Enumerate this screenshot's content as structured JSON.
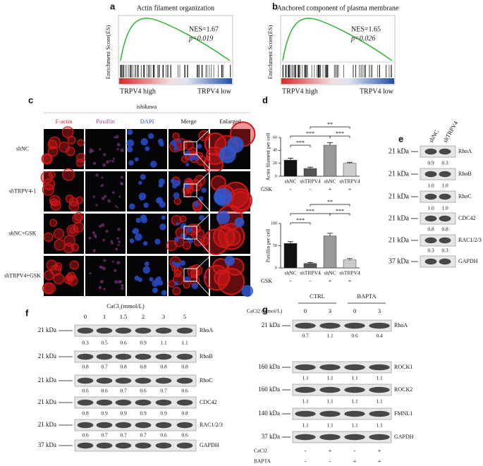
{
  "panel_a": {
    "letter": "a",
    "title": "Actin filament organization",
    "y_label": "Enrichment Score(ES)",
    "nes": "NES=1.67",
    "p": "p=0.019",
    "left_label": "TRPV4 high",
    "right_label": "TRPV4 low"
  },
  "panel_b": {
    "letter": "b",
    "title": "Anchored component of plasma membrane",
    "y_label": "Enrichment Score(ES)",
    "nes": "NES=1.65",
    "p": "p=0.026",
    "left_label": "TRPV4 high",
    "right_label": "TRPV4 low"
  },
  "panel_c": {
    "letter": "c",
    "cell_line": "ishikawa",
    "columns": [
      "F-actin",
      "Paxillin",
      "DAPI",
      "Merge",
      "Enlarged"
    ],
    "rows": [
      "shNC",
      "shTRPV4-1",
      "shNC+GSK",
      "shTRPV4+GSK"
    ]
  },
  "panel_d": {
    "letter": "d"
  },
  "chart_data": [
    {
      "type": "bar",
      "y_label": "Actin filament per cell",
      "categories": [
        "shNC",
        "shTRPV4",
        "shNC",
        "shTRPV4"
      ],
      "treatment_label": "GSK",
      "treatment": [
        "-",
        "-",
        "+",
        "+"
      ],
      "values": [
        25,
        12,
        48,
        20
      ],
      "errors": [
        3,
        2,
        4,
        1.5
      ],
      "colors": [
        "#111111",
        "#555555",
        "#999999",
        "#cccccc"
      ],
      "ylim": [
        0,
        60
      ],
      "yticks": [
        0,
        20,
        40,
        60
      ],
      "significance": [
        "**",
        "***",
        "***",
        "***"
      ]
    },
    {
      "type": "bar",
      "y_label": "Paxillin per cell",
      "categories": [
        "shNC",
        "shTRPV4",
        "shNC",
        "shTRPV4"
      ],
      "treatment_label": "GSK",
      "treatment": [
        "-",
        "-",
        "+",
        "+"
      ],
      "values": [
        55,
        10,
        72,
        18
      ],
      "errors": [
        4,
        2,
        6,
        3
      ],
      "colors": [
        "#111111",
        "#555555",
        "#999999",
        "#cccccc"
      ],
      "ylim": [
        0,
        100
      ],
      "yticks": [
        0,
        50,
        100
      ],
      "significance": [
        "**",
        "***",
        "***",
        "***"
      ]
    }
  ],
  "panel_e": {
    "letter": "e",
    "lanes": [
      "shNC",
      "shTRPV4"
    ],
    "blots": [
      {
        "size": "21 kDa",
        "protein": "RhoA",
        "values": [
          "0.9",
          "0.3"
        ]
      },
      {
        "size": "21 kDa",
        "protein": "RhoB",
        "values": [
          "1.0",
          "1.0"
        ]
      },
      {
        "size": "21 kDa",
        "protein": "RhoC",
        "values": [
          "1.0",
          "1.0"
        ]
      },
      {
        "size": "21 kDa",
        "protein": "CDC42",
        "values": [
          "0.8",
          "0.8"
        ]
      },
      {
        "size": "21 kDa",
        "protein": "RAC1/2/3",
        "values": [
          "0.3",
          "0.3"
        ]
      },
      {
        "size": "37 kDa",
        "protein": "GAPDH"
      }
    ]
  },
  "panel_f": {
    "letter": "f",
    "treatment": "CaCl₂(mmol/L)",
    "lanes": [
      "0",
      "1",
      "1.5",
      "2",
      "3",
      "5"
    ],
    "blots": [
      {
        "size": "21 kDa",
        "protein": "RhoA",
        "values": [
          "0.3",
          "0.5",
          "0.6",
          "0.9",
          "1.1",
          "1.1"
        ]
      },
      {
        "size": "21 kDa",
        "protein": "RhoB",
        "values": [
          "0.8",
          "0.7",
          "0.8",
          "0.8",
          "0.8",
          "0.8"
        ]
      },
      {
        "size": "21 kDa",
        "protein": "RhoC",
        "values": [
          "0.6",
          "0.6",
          "0.7",
          "0.6",
          "0.7",
          "0.6"
        ]
      },
      {
        "size": "21 kDa",
        "protein": "CDC42",
        "values": [
          "0.8",
          "0.9",
          "0.9",
          "0.9",
          "0.9",
          "0.8"
        ]
      },
      {
        "size": "21 kDa",
        "protein": "RAC1/2/3",
        "values": [
          "0.6",
          "0.7",
          "0.7",
          "0.7",
          "0.6",
          "0.6"
        ]
      },
      {
        "size": "37 kDa",
        "protein": "GAPDH"
      }
    ]
  },
  "panel_g": {
    "letter": "g",
    "groups": [
      "CTRL",
      "BAPTA"
    ],
    "treatment": "CaCl2 (mmol/L)",
    "lanes": [
      "0",
      "3",
      "0",
      "3"
    ],
    "blots": [
      {
        "size": "21 kDa",
        "protein": "RhoA",
        "values": [
          "0.7",
          "1.1",
          "0.6",
          "0.4"
        ]
      },
      {
        "size": "160 kDa",
        "protein": "ROCK1",
        "values": [
          "1.1",
          "1.1",
          "1.1",
          "1.1"
        ]
      },
      {
        "size": "160 kDa",
        "protein": "ROCK2",
        "values": [
          "1.1",
          "1.1",
          "1.1",
          "1.1"
        ]
      },
      {
        "size": "140 kDa",
        "protein": "FMNL1",
        "values": [
          "1.1",
          "1.1",
          "1.1",
          "1.1"
        ]
      },
      {
        "size": "37 kDa",
        "protein": "GAPDH"
      }
    ],
    "footer": [
      {
        "label": "CaCl2",
        "signs": [
          "-",
          "+",
          "-",
          "+"
        ]
      },
      {
        "label": "BAPTA",
        "signs": [
          "-",
          "-",
          "+",
          "+"
        ]
      }
    ]
  }
}
